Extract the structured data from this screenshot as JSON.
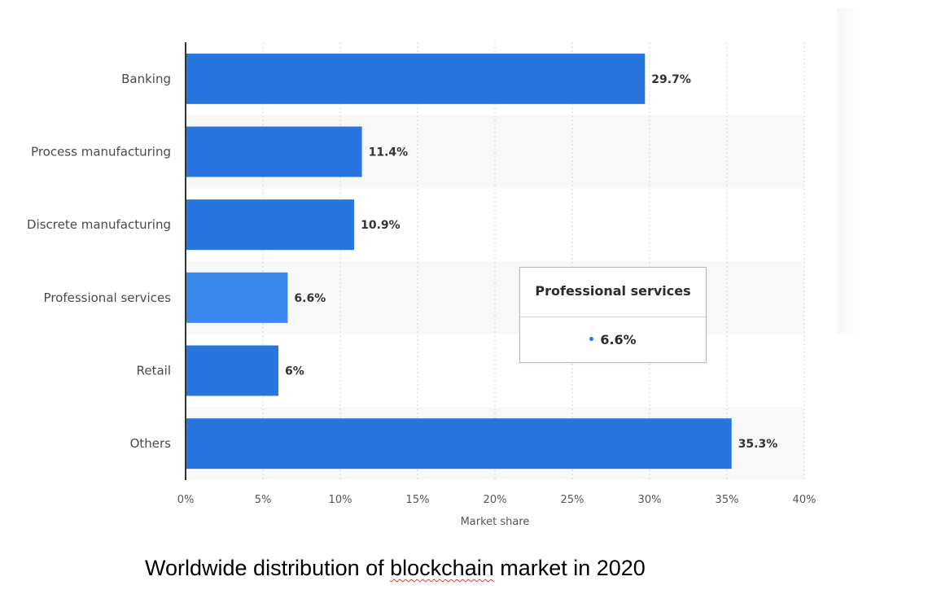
{
  "chart_data": {
    "type": "bar",
    "orientation": "horizontal",
    "categories": [
      "Banking",
      "Process manufacturing",
      "Discrete manufacturing",
      "Professional services",
      "Retail",
      "Others"
    ],
    "values": [
      29.7,
      11.4,
      10.9,
      6.6,
      6,
      35.3
    ],
    "value_labels": [
      "29.7%",
      "11.4%",
      "10.9%",
      "6.6%",
      "6%",
      "35.3%"
    ],
    "highlighted_category": "Professional services",
    "xlabel": "Market share",
    "xlim": [
      0,
      40
    ],
    "x_ticks": [
      0,
      5,
      10,
      15,
      20,
      25,
      30,
      35,
      40
    ],
    "x_tick_labels": [
      "0%",
      "5%",
      "10%",
      "15%",
      "20%",
      "25%",
      "30%",
      "35%",
      "40%"
    ],
    "grid": "vertical dotted",
    "colors": {
      "bar": "#2876dd",
      "bar_highlight": "#3b88ec",
      "row_band": "#f8f8f8",
      "axis": "#333333",
      "grid": "#d6d6d6"
    }
  },
  "tooltip": {
    "title": "Professional services",
    "value": "6.6%"
  },
  "caption": {
    "before": "Worldwide distribution of ",
    "underlined": "blockchain",
    "after": " market in 2020"
  }
}
